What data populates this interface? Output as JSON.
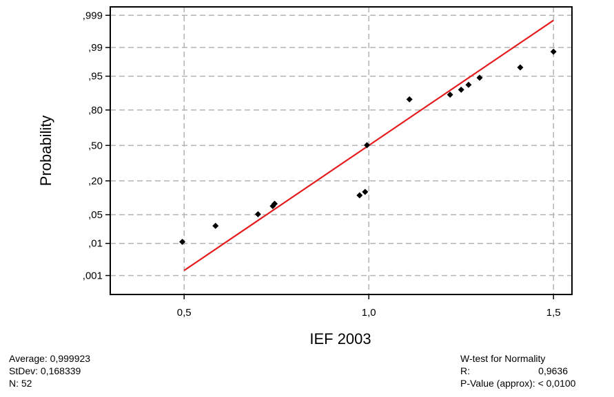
{
  "chart_data": {
    "type": "scatter",
    "subtype": "normal-probability-plot",
    "xlabel": "IEF 2003",
    "ylabel": "Probability",
    "xlim": [
      0.3,
      1.55
    ],
    "x_ticks": [
      {
        "value": 0.5,
        "label": "0,5"
      },
      {
        "value": 1.0,
        "label": "1,0"
      },
      {
        "value": 1.5,
        "label": "1,5"
      }
    ],
    "y_ticks": [
      {
        "value": 0.999,
        "label": ",999"
      },
      {
        "value": 0.99,
        "label": ",99"
      },
      {
        "value": 0.95,
        "label": ",95"
      },
      {
        "value": 0.8,
        "label": ",80"
      },
      {
        "value": 0.5,
        "label": ",50"
      },
      {
        "value": 0.2,
        "label": ",20"
      },
      {
        "value": 0.05,
        "label": ",05"
      },
      {
        "value": 0.01,
        "label": ",01"
      },
      {
        "value": 0.001,
        "label": ",001"
      }
    ],
    "grid": true,
    "points": [
      {
        "x": 0.495,
        "p": 0.011
      },
      {
        "x": 0.585,
        "p": 0.028
      },
      {
        "x": 0.7,
        "p": 0.051
      },
      {
        "x": 0.74,
        "p": 0.075
      },
      {
        "x": 0.745,
        "p": 0.083
      },
      {
        "x": 0.975,
        "p": 0.118
      },
      {
        "x": 0.99,
        "p": 0.135
      },
      {
        "x": 0.995,
        "p": 0.502
      },
      {
        "x": 1.11,
        "p": 0.863
      },
      {
        "x": 1.22,
        "p": 0.886
      },
      {
        "x": 1.25,
        "p": 0.907
      },
      {
        "x": 1.27,
        "p": 0.925
      },
      {
        "x": 1.3,
        "p": 0.946
      },
      {
        "x": 1.41,
        "p": 0.968
      },
      {
        "x": 1.5,
        "p": 0.987
      }
    ],
    "fit_line": {
      "color": "#e41a1c",
      "mean": 0.999923,
      "stdev": 0.168339,
      "x_range": [
        0.5,
        1.5
      ]
    },
    "point_color": "#000000"
  },
  "stats_left": {
    "average": "Average: 0,999923",
    "stdev": "StDev: 0,168339",
    "n": "N: 52"
  },
  "stats_right": {
    "title": "W-test for Normality",
    "r_label": "R:",
    "r_value": "0,9636",
    "p_value": "P-Value (approx): < 0,0100"
  }
}
